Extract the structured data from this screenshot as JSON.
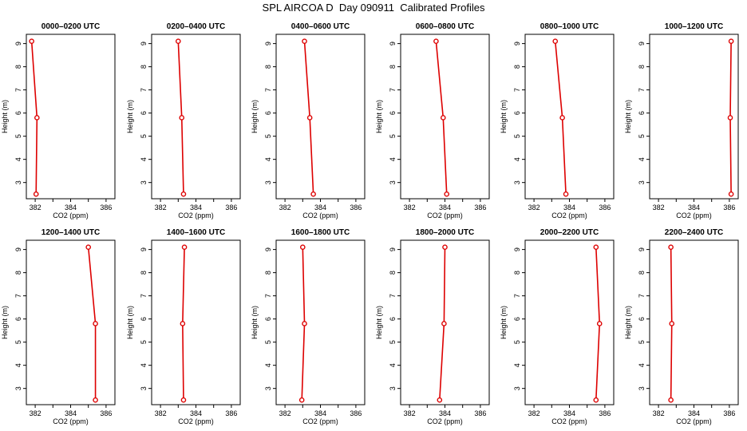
{
  "title": "SPL AIRCOA D  Day 090911  Calibrated Profiles",
  "colors": {
    "profile": "#dd0000",
    "axis": "#000000"
  },
  "chart_data": [
    {
      "type": "line",
      "title": "0000–0200 UTC",
      "xlabel": "CO2 (ppm)",
      "ylabel": "Height (m)",
      "xlim": [
        381.5,
        386.5
      ],
      "ylim": [
        2.3,
        9.4
      ],
      "xticks": [
        382,
        384,
        386
      ],
      "yticks": [
        3,
        4,
        5,
        6,
        7,
        8,
        9
      ],
      "series": [
        {
          "x": [
            381.8,
            382.1,
            382.05
          ],
          "y": [
            9.1,
            5.8,
            2.5
          ]
        }
      ]
    },
    {
      "type": "line",
      "title": "0200–0400 UTC",
      "xlabel": "CO2 (ppm)",
      "ylabel": "Height (m)",
      "xlim": [
        381.5,
        386.5
      ],
      "ylim": [
        2.3,
        9.4
      ],
      "xticks": [
        382,
        384,
        386
      ],
      "yticks": [
        3,
        4,
        5,
        6,
        7,
        8,
        9
      ],
      "series": [
        {
          "x": [
            383.0,
            383.2,
            383.3
          ],
          "y": [
            9.1,
            5.8,
            2.5
          ]
        }
      ]
    },
    {
      "type": "line",
      "title": "0400–0600 UTC",
      "xlabel": "CO2 (ppm)",
      "ylabel": "Height (m)",
      "xlim": [
        381.5,
        386.5
      ],
      "ylim": [
        2.3,
        9.4
      ],
      "xticks": [
        382,
        384,
        386
      ],
      "yticks": [
        3,
        4,
        5,
        6,
        7,
        8,
        9
      ],
      "series": [
        {
          "x": [
            383.1,
            383.4,
            383.6
          ],
          "y": [
            9.1,
            5.8,
            2.5
          ]
        }
      ]
    },
    {
      "type": "line",
      "title": "0600–0800 UTC",
      "xlabel": "CO2 (ppm)",
      "ylabel": "Height (m)",
      "xlim": [
        381.5,
        386.5
      ],
      "ylim": [
        2.3,
        9.4
      ],
      "xticks": [
        382,
        384,
        386
      ],
      "yticks": [
        3,
        4,
        5,
        6,
        7,
        8,
        9
      ],
      "series": [
        {
          "x": [
            383.5,
            383.9,
            384.1
          ],
          "y": [
            9.1,
            5.8,
            2.5
          ]
        }
      ]
    },
    {
      "type": "line",
      "title": "0800–1000 UTC",
      "xlabel": "CO2 (ppm)",
      "ylabel": "Height (m)",
      "xlim": [
        381.5,
        386.5
      ],
      "ylim": [
        2.3,
        9.4
      ],
      "xticks": [
        382,
        384,
        386
      ],
      "yticks": [
        3,
        4,
        5,
        6,
        7,
        8,
        9
      ],
      "series": [
        {
          "x": [
            383.2,
            383.6,
            383.8
          ],
          "y": [
            9.1,
            5.8,
            2.5
          ]
        }
      ]
    },
    {
      "type": "line",
      "title": "1000–1200 UTC",
      "xlabel": "CO2 (ppm)",
      "ylabel": "Height (m)",
      "xlim": [
        381.5,
        386.5
      ],
      "ylim": [
        2.3,
        9.4
      ],
      "xticks": [
        382,
        384,
        386
      ],
      "yticks": [
        3,
        4,
        5,
        6,
        7,
        8,
        9
      ],
      "series": [
        {
          "x": [
            386.1,
            386.05,
            386.1
          ],
          "y": [
            9.1,
            5.8,
            2.5
          ]
        }
      ]
    },
    {
      "type": "line",
      "title": "1200–1400 UTC",
      "xlabel": "CO2 (ppm)",
      "ylabel": "Height (m)",
      "xlim": [
        381.5,
        386.5
      ],
      "ylim": [
        2.3,
        9.4
      ],
      "xticks": [
        382,
        384,
        386
      ],
      "yticks": [
        3,
        4,
        5,
        6,
        7,
        8,
        9
      ],
      "series": [
        {
          "x": [
            385.0,
            385.4,
            385.4
          ],
          "y": [
            9.1,
            5.8,
            2.5
          ]
        }
      ]
    },
    {
      "type": "line",
      "title": "1400–1600 UTC",
      "xlabel": "CO2 (ppm)",
      "ylabel": "Height (m)",
      "xlim": [
        381.5,
        386.5
      ],
      "ylim": [
        2.3,
        9.4
      ],
      "xticks": [
        382,
        384,
        386
      ],
      "yticks": [
        3,
        4,
        5,
        6,
        7,
        8,
        9
      ],
      "series": [
        {
          "x": [
            383.35,
            383.25,
            383.3
          ],
          "y": [
            9.1,
            5.8,
            2.5
          ]
        }
      ]
    },
    {
      "type": "line",
      "title": "1600–1800 UTC",
      "xlabel": "CO2 (ppm)",
      "ylabel": "Height (m)",
      "xlim": [
        381.5,
        386.5
      ],
      "ylim": [
        2.3,
        9.4
      ],
      "xticks": [
        382,
        384,
        386
      ],
      "yticks": [
        3,
        4,
        5,
        6,
        7,
        8,
        9
      ],
      "series": [
        {
          "x": [
            383.0,
            383.1,
            382.95
          ],
          "y": [
            9.1,
            5.8,
            2.5
          ]
        }
      ]
    },
    {
      "type": "line",
      "title": "1800–2000 UTC",
      "xlabel": "CO2 (ppm)",
      "ylabel": "Height (m)",
      "xlim": [
        381.5,
        386.5
      ],
      "ylim": [
        2.3,
        9.4
      ],
      "xticks": [
        382,
        384,
        386
      ],
      "yticks": [
        3,
        4,
        5,
        6,
        7,
        8,
        9
      ],
      "series": [
        {
          "x": [
            384.0,
            383.95,
            383.7
          ],
          "y": [
            9.1,
            5.8,
            2.5
          ]
        }
      ]
    },
    {
      "type": "line",
      "title": "2000–2200 UTC",
      "xlabel": "CO2 (ppm)",
      "ylabel": "Height (m)",
      "xlim": [
        381.5,
        386.5
      ],
      "ylim": [
        2.3,
        9.4
      ],
      "xticks": [
        382,
        384,
        386
      ],
      "yticks": [
        3,
        4,
        5,
        6,
        7,
        8,
        9
      ],
      "series": [
        {
          "x": [
            385.5,
            385.7,
            385.5
          ],
          "y": [
            9.1,
            5.8,
            2.5
          ]
        }
      ]
    },
    {
      "type": "line",
      "title": "2200–2400 UTC",
      "xlabel": "CO2 (ppm)",
      "ylabel": "Height (m)",
      "xlim": [
        381.5,
        386.5
      ],
      "ylim": [
        2.3,
        9.4
      ],
      "xticks": [
        382,
        384,
        386
      ],
      "yticks": [
        3,
        4,
        5,
        6,
        7,
        8,
        9
      ],
      "series": [
        {
          "x": [
            382.7,
            382.75,
            382.7
          ],
          "y": [
            9.1,
            5.8,
            2.5
          ]
        }
      ]
    }
  ]
}
